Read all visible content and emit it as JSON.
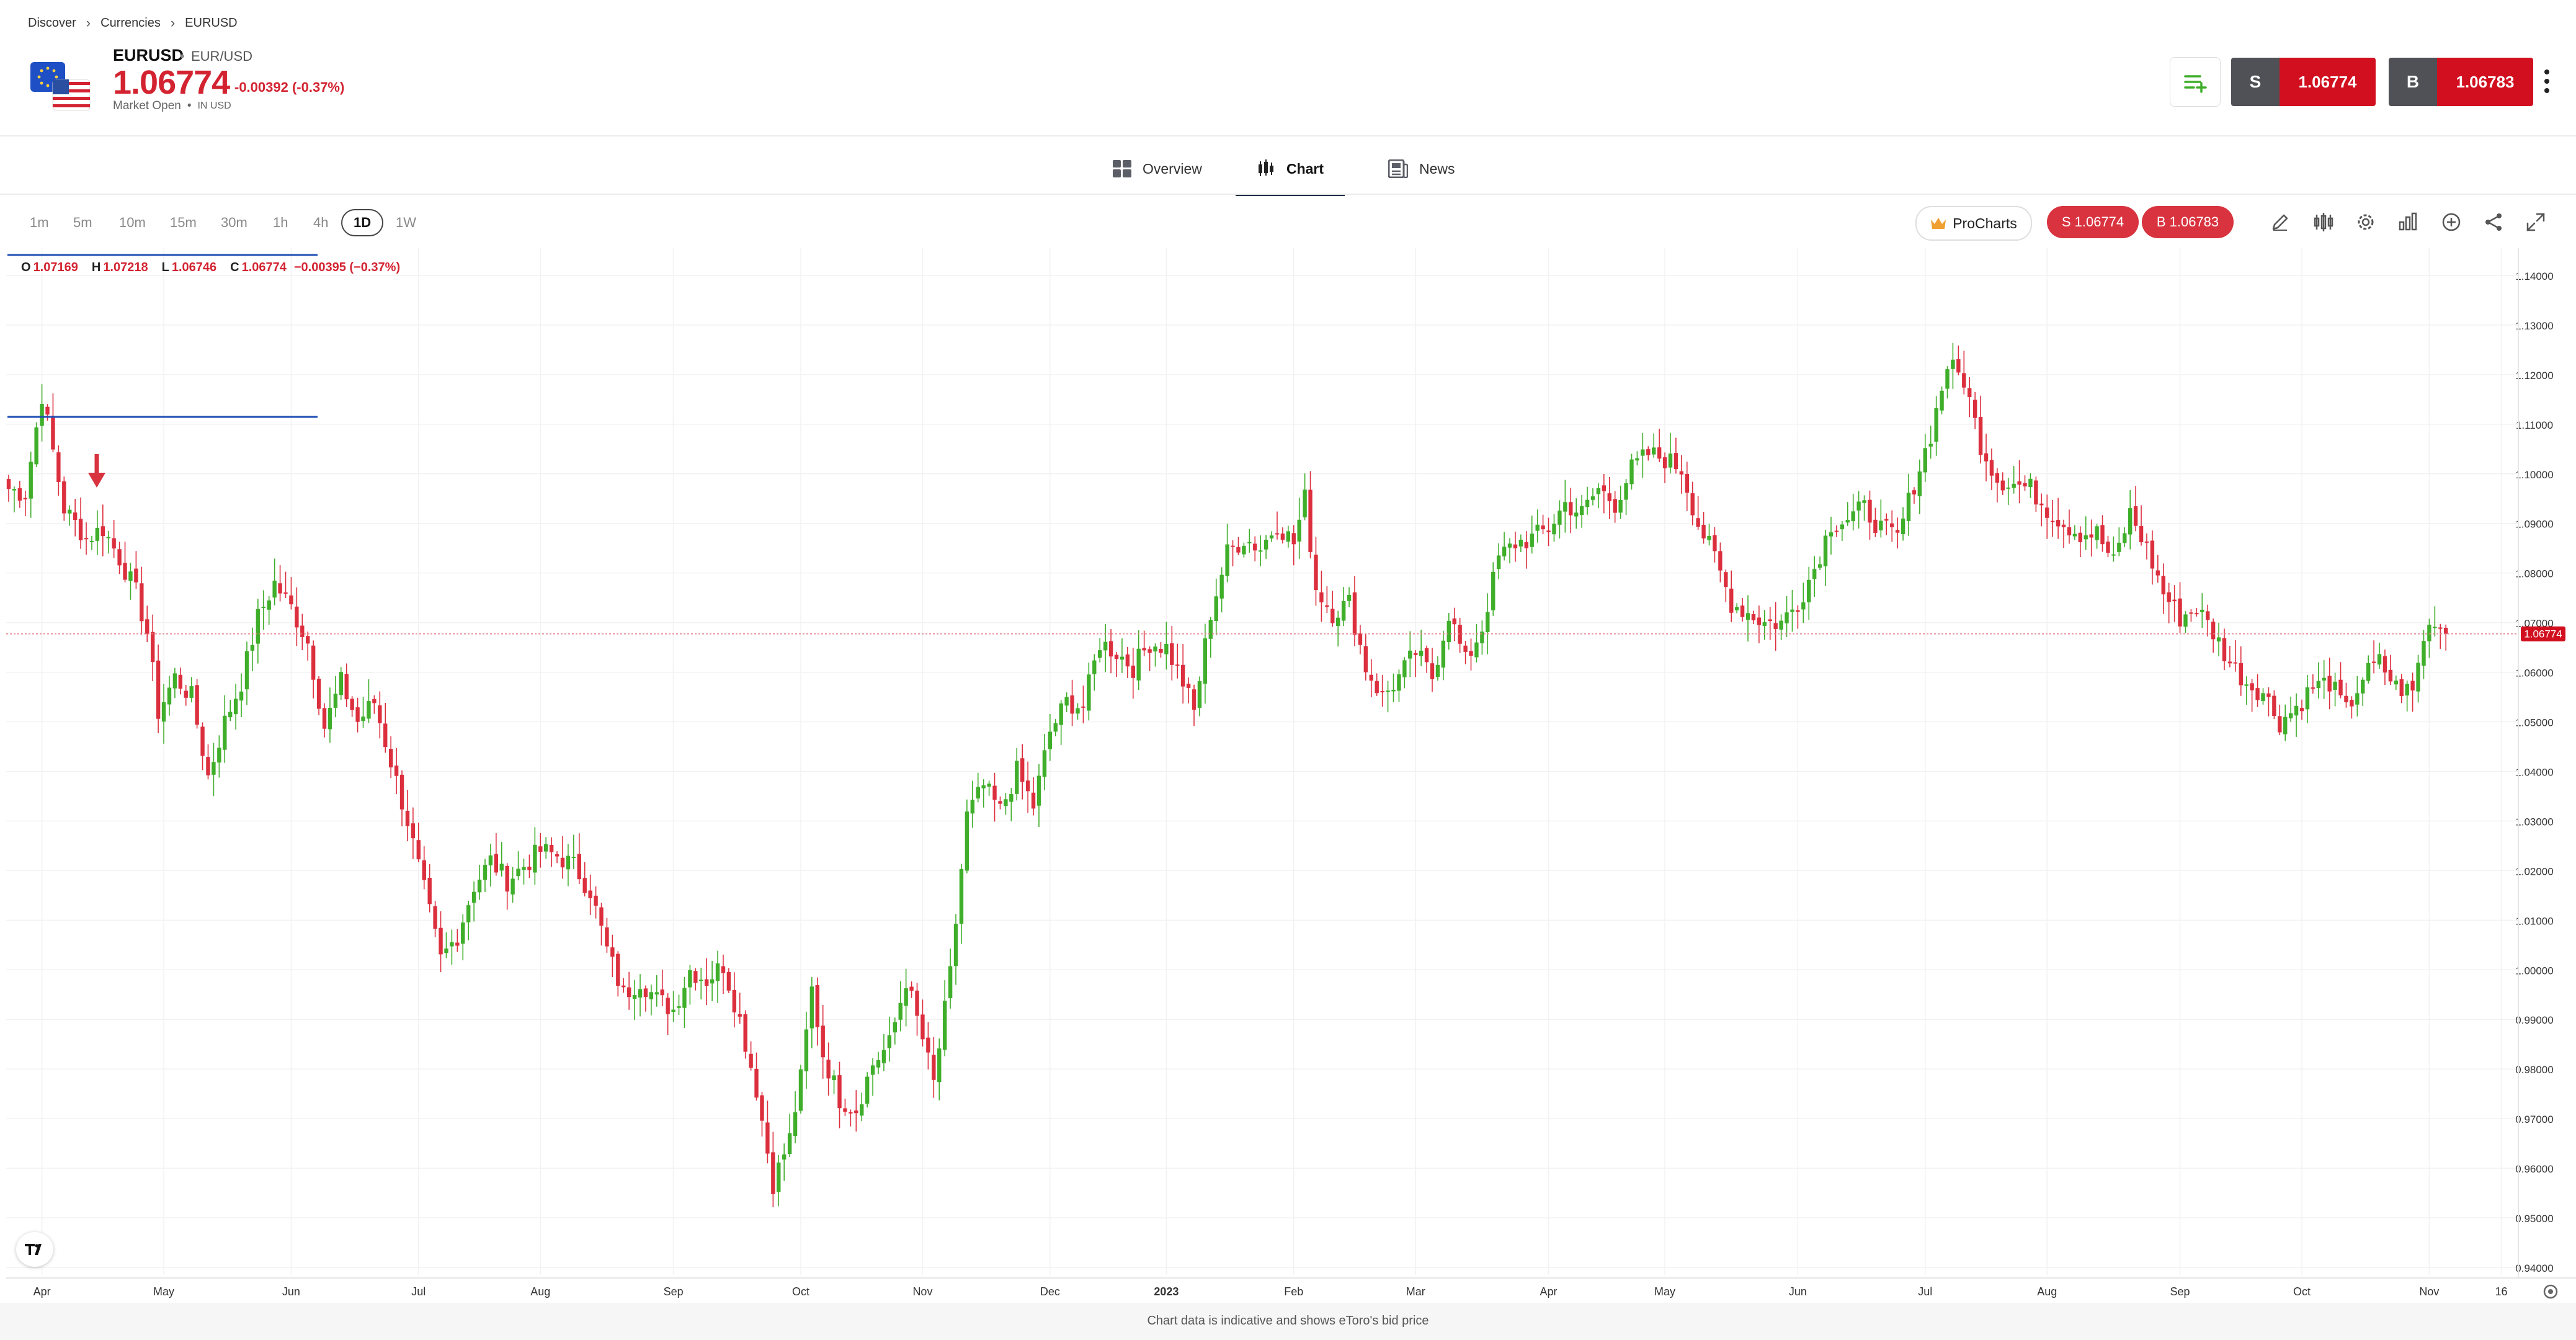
{
  "breadcrumbs": [
    "Discover",
    "Currencies",
    "EURUSD"
  ],
  "instrument": {
    "symbol": "EURUSD",
    "pair": "EUR/USD",
    "price": "1.06774",
    "change": "-0.00392 (-0.37%)",
    "status": "Market Open",
    "currency": "IN USD"
  },
  "trade": {
    "sell_label": "S",
    "sell_price": "1.06774",
    "buy_label": "B",
    "buy_price": "1.06783"
  },
  "tabs": [
    {
      "label": "Overview",
      "icon": "grid-icon"
    },
    {
      "label": "Chart",
      "icon": "candles-icon",
      "active": true
    },
    {
      "label": "News",
      "icon": "newspaper-icon"
    }
  ],
  "timeframes": [
    "1m",
    "5m",
    "10m",
    "15m",
    "30m",
    "1h",
    "4h",
    "1D",
    "1W"
  ],
  "selected_timeframe": "1D",
  "toolbar": {
    "procharts_label": "ProCharts",
    "sell_pill": "S 1.06774",
    "buy_pill": "B 1.06783",
    "icons": [
      "pencil-icon",
      "indicators-icon",
      "settings-icon",
      "chart-type-icon",
      "add-icon",
      "share-icon",
      "fullscreen-icon"
    ]
  },
  "ohlc": {
    "o_label": "O",
    "o": "1.07169",
    "h_label": "H",
    "h": "1.07218",
    "l_label": "L",
    "l": "1.06746",
    "c_label": "C",
    "c": "1.06774",
    "change": "−0.00395 (−0.37%)"
  },
  "footnote": "Chart data is indicative and shows eToro's bid price",
  "colors": {
    "up": "#3fae2a",
    "down": "#dc2f3e",
    "accent_red": "#d10f1f",
    "drawing_line": "#1f4fb5"
  },
  "chart_data": {
    "type": "candlestick",
    "y_ticks": [
      "1.14000",
      "1.13000",
      "1.12000",
      "1.11000",
      "1.10000",
      "1.09000",
      "1.08000",
      "1.07000",
      "1.06000",
      "1.05000",
      "1.04000",
      "1.03000",
      "1.02000",
      "1.01000",
      "1.00000",
      "0.99000",
      "0.98000",
      "0.97000",
      "0.96000",
      "0.95000",
      "0.94000"
    ],
    "ylim": [
      0.9385,
      1.1455
    ],
    "x_labels": [
      "Apr",
      "May",
      "Jun",
      "Jul",
      "Aug",
      "Sep",
      "Oct",
      "Nov",
      "Dec",
      "2023",
      "Feb",
      "Mar",
      "Apr",
      "May",
      "Jun",
      "Jul",
      "Aug",
      "Sep",
      "Oct",
      "Nov",
      "16"
    ],
    "x_label_index": [
      6,
      28,
      51,
      74,
      96,
      120,
      143,
      165,
      188,
      209,
      232,
      254,
      278,
      299,
      323,
      346,
      368,
      392,
      414,
      437,
      450
    ],
    "last_price_label": "1.06774",
    "last_price": 1.06774,
    "anchors": [
      [
        0,
        1.097
      ],
      [
        3,
        1.096
      ],
      [
        6,
        1.116
      ],
      [
        10,
        1.093
      ],
      [
        14,
        1.087
      ],
      [
        17,
        1.089
      ],
      [
        20,
        1.083
      ],
      [
        23,
        1.076
      ],
      [
        25,
        1.068
      ],
      [
        27,
        1.052
      ],
      [
        30,
        1.059
      ],
      [
        33,
        1.055
      ],
      [
        36,
        1.039
      ],
      [
        39,
        1.05
      ],
      [
        42,
        1.058
      ],
      [
        45,
        1.071
      ],
      [
        48,
        1.078
      ],
      [
        51,
        1.073
      ],
      [
        54,
        1.066
      ],
      [
        57,
        1.049
      ],
      [
        60,
        1.058
      ],
      [
        63,
        1.05
      ],
      [
        66,
        1.054
      ],
      [
        69,
        1.042
      ],
      [
        72,
        1.03
      ],
      [
        75,
        1.016
      ],
      [
        78,
        1.002
      ],
      [
        81,
        1.007
      ],
      [
        84,
        1.017
      ],
      [
        87,
        1.022
      ],
      [
        90,
        1.018
      ],
      [
        93,
        1.021
      ],
      [
        96,
        1.024
      ],
      [
        99,
        1.023
      ],
      [
        102,
        1.021
      ],
      [
        105,
        1.016
      ],
      [
        108,
        1.004
      ],
      [
        111,
        0.995
      ],
      [
        114,
        0.998
      ],
      [
        117,
        0.994
      ],
      [
        120,
        0.992
      ],
      [
        123,
        1.0
      ],
      [
        126,
        0.998
      ],
      [
        129,
        1.001
      ],
      [
        132,
        0.99
      ],
      [
        135,
        0.976
      ],
      [
        138,
        0.957
      ],
      [
        141,
        0.966
      ],
      [
        143,
        0.978
      ],
      [
        145,
        0.996
      ],
      [
        147,
        0.983
      ],
      [
        150,
        0.974
      ],
      [
        153,
        0.972
      ],
      [
        156,
        0.981
      ],
      [
        159,
        0.985
      ],
      [
        162,
        0.998
      ],
      [
        165,
        0.986
      ],
      [
        167,
        0.977
      ],
      [
        170,
        0.999
      ],
      [
        173,
        1.031
      ],
      [
        176,
        1.037
      ],
      [
        179,
        1.032
      ],
      [
        182,
        1.04
      ],
      [
        185,
        1.033
      ],
      [
        188,
        1.048
      ],
      [
        191,
        1.054
      ],
      [
        194,
        1.053
      ],
      [
        197,
        1.066
      ],
      [
        200,
        1.064
      ],
      [
        203,
        1.061
      ],
      [
        206,
        1.066
      ],
      [
        209,
        1.065
      ],
      [
        212,
        1.058
      ],
      [
        214,
        1.052
      ],
      [
        217,
        1.072
      ],
      [
        220,
        1.084
      ],
      [
        223,
        1.087
      ],
      [
        226,
        1.085
      ],
      [
        229,
        1.09
      ],
      [
        232,
        1.086
      ],
      [
        234,
        1.095
      ],
      [
        236,
        1.077
      ],
      [
        239,
        1.072
      ],
      [
        242,
        1.074
      ],
      [
        245,
        1.061
      ],
      [
        248,
        1.055
      ],
      [
        251,
        1.059
      ],
      [
        254,
        1.064
      ],
      [
        257,
        1.059
      ],
      [
        260,
        1.072
      ],
      [
        263,
        1.062
      ],
      [
        266,
        1.069
      ],
      [
        269,
        1.083
      ],
      [
        272,
        1.086
      ],
      [
        275,
        1.087
      ],
      [
        278,
        1.089
      ],
      [
        281,
        1.094
      ],
      [
        284,
        1.092
      ],
      [
        287,
        1.097
      ],
      [
        290,
        1.094
      ],
      [
        293,
        1.101
      ],
      [
        296,
        1.104
      ],
      [
        299,
        1.103
      ],
      [
        302,
        1.101
      ],
      [
        305,
        1.09
      ],
      [
        308,
        1.083
      ],
      [
        311,
        1.074
      ],
      [
        314,
        1.072
      ],
      [
        317,
        1.07
      ],
      [
        320,
        1.07
      ],
      [
        323,
        1.074
      ],
      [
        326,
        1.081
      ],
      [
        329,
        1.09
      ],
      [
        332,
        1.091
      ],
      [
        335,
        1.093
      ],
      [
        338,
        1.089
      ],
      [
        341,
        1.087
      ],
      [
        344,
        1.098
      ],
      [
        347,
        1.108
      ],
      [
        350,
        1.122
      ],
      [
        353,
        1.119
      ],
      [
        356,
        1.106
      ],
      [
        359,
        1.099
      ],
      [
        362,
        1.098
      ],
      [
        365,
        1.097
      ],
      [
        368,
        1.093
      ],
      [
        371,
        1.09
      ],
      [
        374,
        1.088
      ],
      [
        377,
        1.088
      ],
      [
        380,
        1.082
      ],
      [
        383,
        1.092
      ],
      [
        386,
        1.085
      ],
      [
        389,
        1.076
      ],
      [
        392,
        1.071
      ],
      [
        395,
        1.073
      ],
      [
        398,
        1.068
      ],
      [
        401,
        1.062
      ],
      [
        404,
        1.058
      ],
      [
        407,
        1.056
      ],
      [
        410,
        1.05
      ],
      [
        413,
        1.053
      ],
      [
        416,
        1.057
      ],
      [
        419,
        1.058
      ],
      [
        422,
        1.052
      ],
      [
        425,
        1.059
      ],
      [
        428,
        1.062
      ],
      [
        431,
        1.057
      ],
      [
        434,
        1.056
      ],
      [
        436,
        1.067
      ],
      [
        438,
        1.071
      ],
      [
        440,
        1.067
      ]
    ]
  }
}
